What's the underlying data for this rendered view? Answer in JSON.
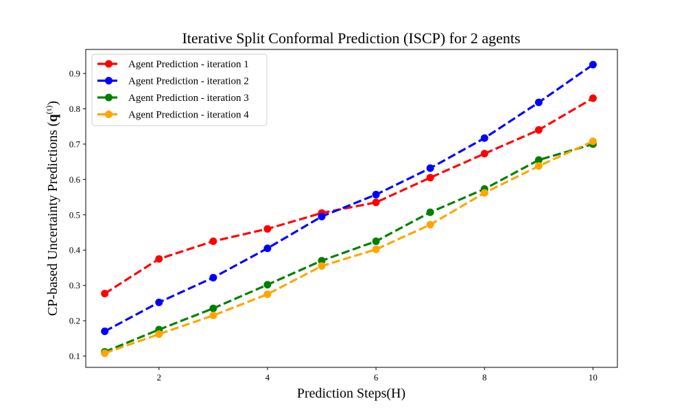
{
  "chart_data": {
    "type": "line",
    "title": "Iterative Split Conformal Prediction (ISCP) for 2 agents",
    "xlabel": "Prediction Steps(H)",
    "ylabel_main": "CP-based Uncertainty Predictions (",
    "ylabel_bold": "q",
    "ylabel_sup": "(τ)",
    "ylabel_close": ")",
    "xlim": [
      0.65,
      10.45
    ],
    "ylim": [
      0.068,
      0.968
    ],
    "xticks": [
      2,
      4,
      6,
      8,
      10
    ],
    "xtick_labels": [
      "2",
      "4",
      "6",
      "8",
      "10"
    ],
    "yticks": [
      0.1,
      0.2,
      0.3,
      0.4,
      0.5,
      0.6,
      0.7,
      0.8,
      0.9
    ],
    "ytick_labels": [
      "0.1",
      "0.2",
      "0.3",
      "0.4",
      "0.5",
      "0.6",
      "0.7",
      "0.8",
      "0.9"
    ],
    "grid": false,
    "legend_position": "top-left",
    "x": [
      1,
      2,
      3,
      4,
      5,
      6,
      7,
      8,
      9,
      10
    ],
    "series": [
      {
        "name": "Agent Prediction - iteration 1",
        "color": "#ff0000",
        "values": [
          0.277,
          0.375,
          0.425,
          0.46,
          0.505,
          0.535,
          0.605,
          0.673,
          0.74,
          0.83
        ]
      },
      {
        "name": "Agent Prediction - iteration 2",
        "color": "#0000ff",
        "values": [
          0.17,
          0.252,
          0.322,
          0.405,
          0.495,
          0.557,
          0.632,
          0.717,
          0.818,
          0.925
        ]
      },
      {
        "name": "Agent Prediction - iteration 3",
        "color": "#008000",
        "values": [
          0.112,
          0.175,
          0.235,
          0.302,
          0.37,
          0.425,
          0.507,
          0.573,
          0.655,
          0.7
        ]
      },
      {
        "name": "Agent Prediction - iteration 4",
        "color": "#ffa500",
        "values": [
          0.108,
          0.162,
          0.215,
          0.275,
          0.355,
          0.402,
          0.472,
          0.562,
          0.638,
          0.708
        ]
      }
    ]
  }
}
